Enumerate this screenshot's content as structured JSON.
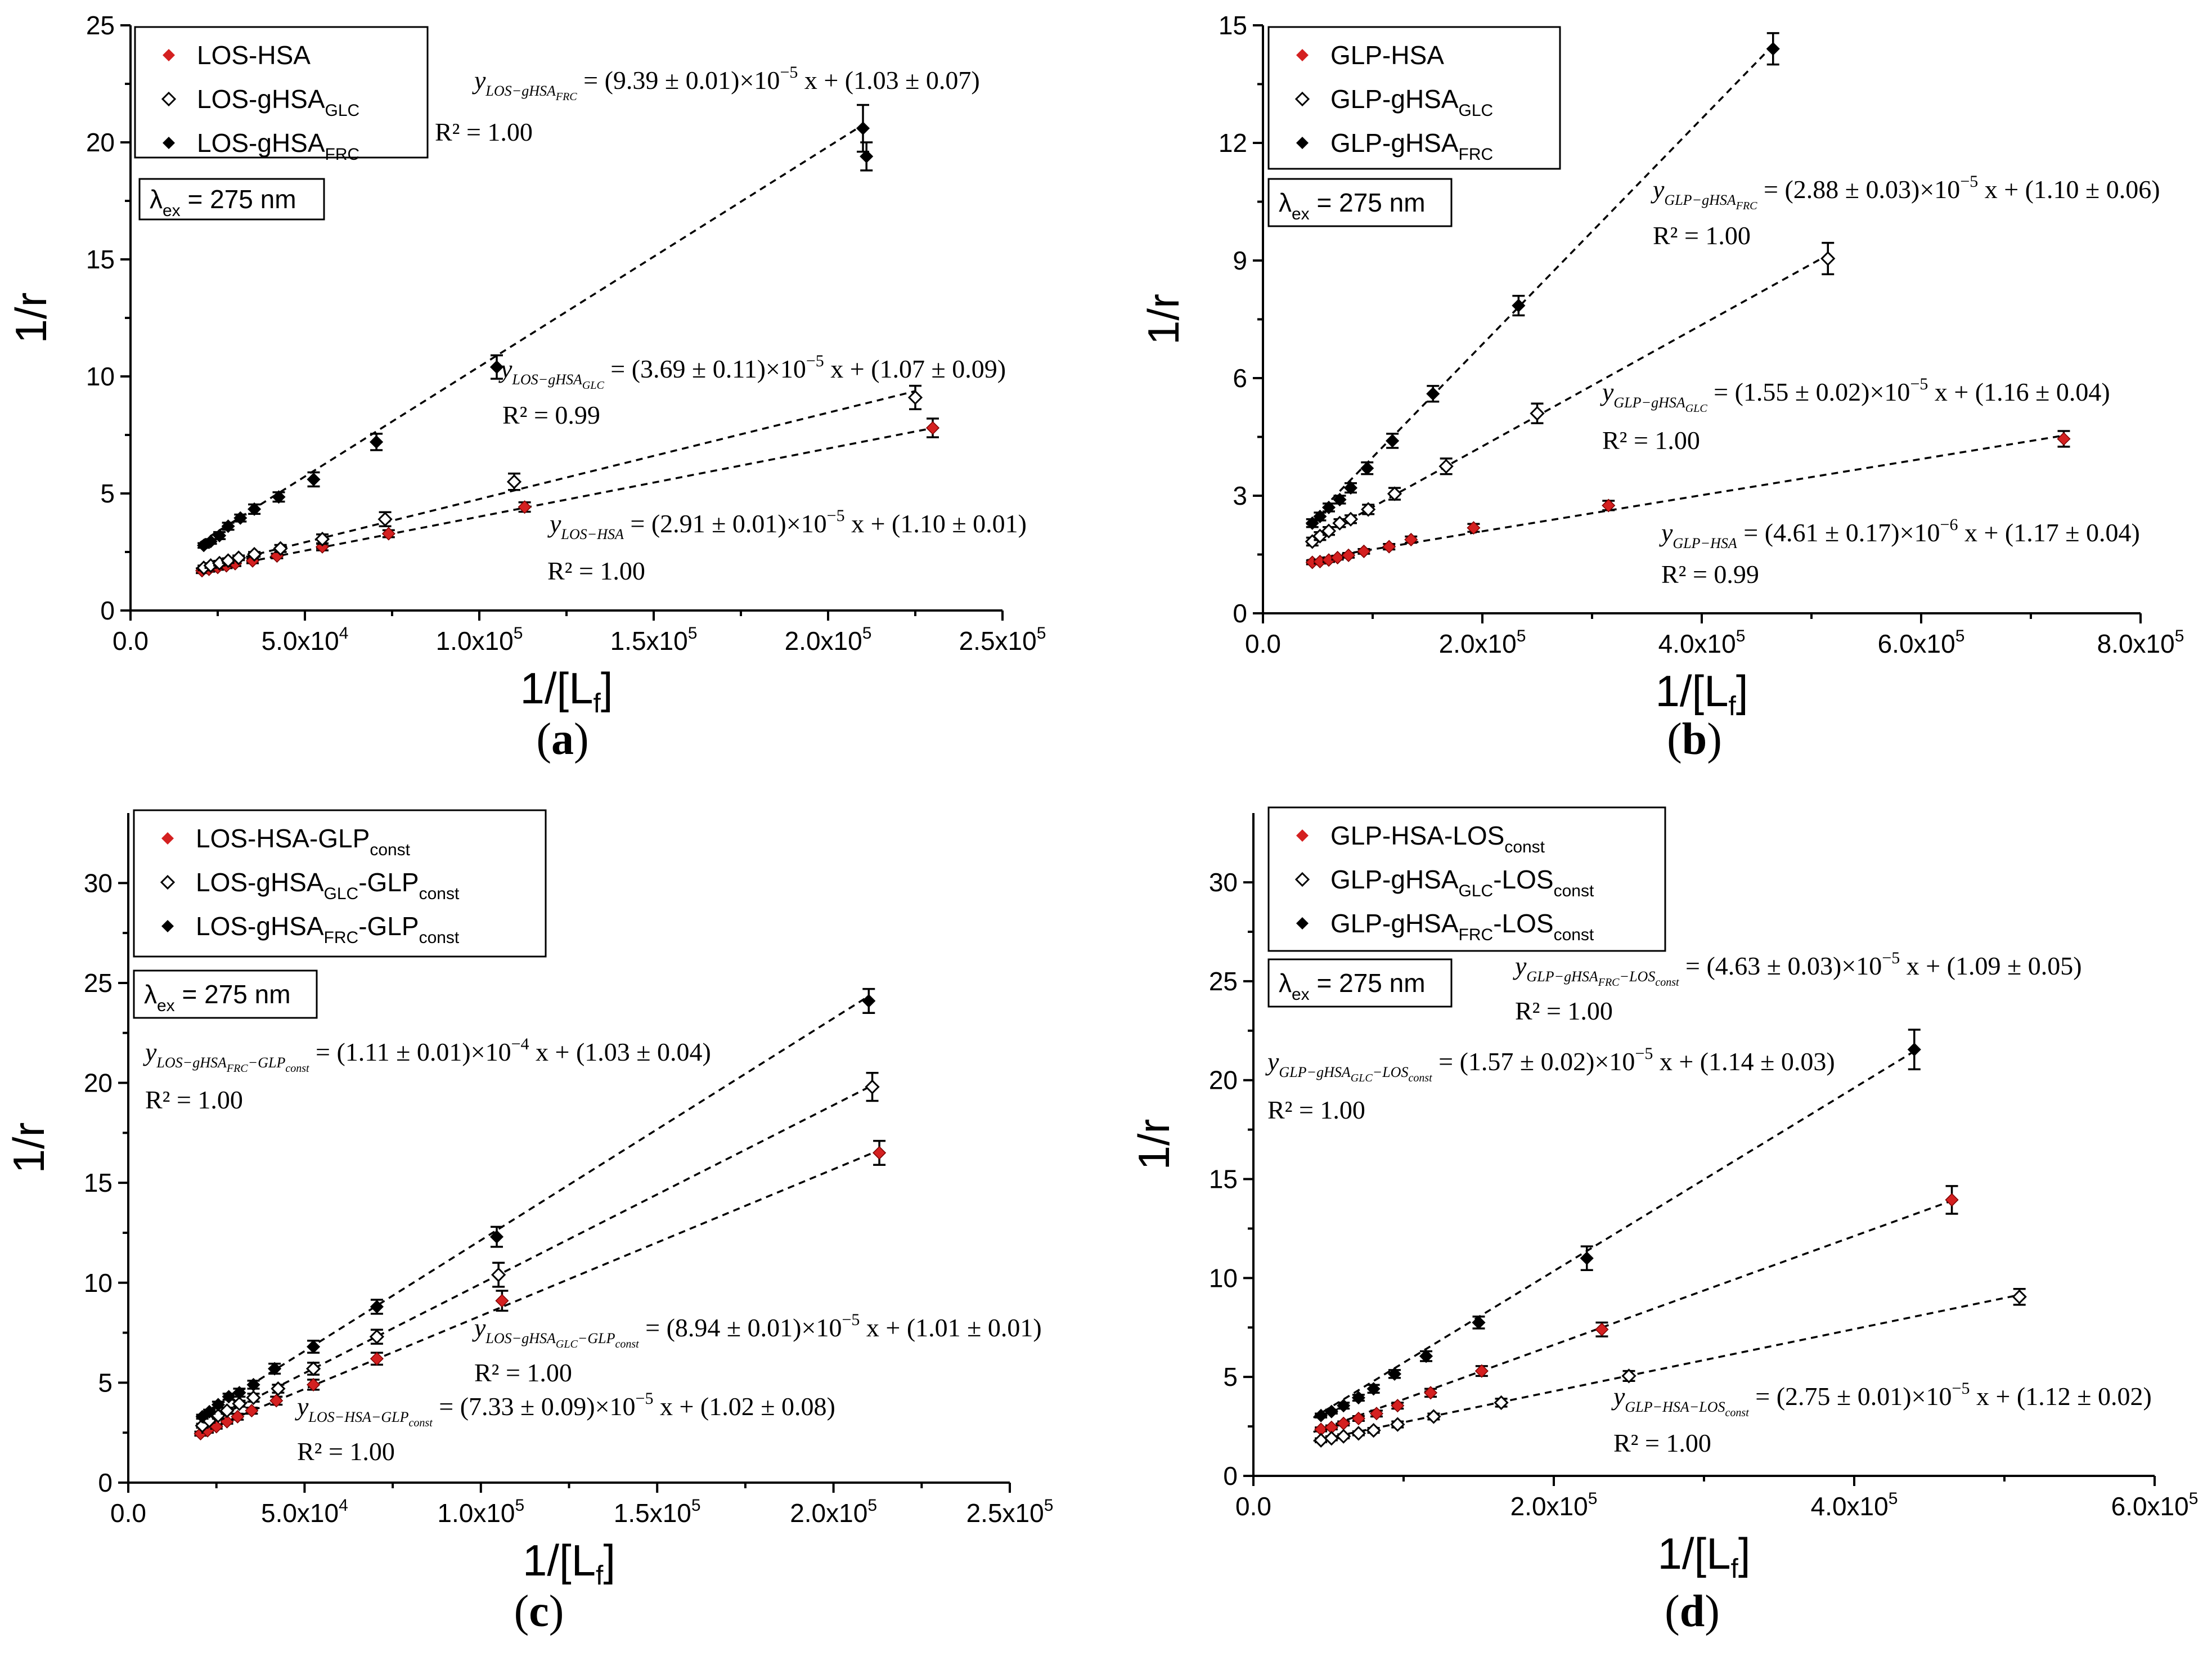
{
  "figure": {
    "ex_label": "λex = 275 nm",
    "ex_main": "λ",
    "ex_sub": "ex",
    "ex_rest": " = 275 nm"
  },
  "chart_data": [
    {
      "id": "a",
      "type": "scatter",
      "panel_label": "(a)",
      "xlabel": "1/[Lf]",
      "ylabel": "1/r",
      "xlim": [
        0,
        250000
      ],
      "ylim": [
        0,
        25
      ],
      "xticks": [
        {
          "v": 0,
          "m": "0.0",
          "e": ""
        },
        {
          "v": 50000,
          "m": "5.0x10",
          "e": "4"
        },
        {
          "v": 100000,
          "m": "1.0x10",
          "e": "5"
        },
        {
          "v": 150000,
          "m": "1.5x10",
          "e": "5"
        },
        {
          "v": 200000,
          "m": "2.0x10",
          "e": "5"
        },
        {
          "v": 250000,
          "m": "2.5x10",
          "e": "5"
        }
      ],
      "yticks": [
        0,
        5,
        10,
        15,
        20,
        25
      ],
      "series": [
        {
          "name": "LOS-HSA",
          "legend_main": "LOS-HSA",
          "legend_sub": "",
          "legend_tail": "",
          "marker": "filled",
          "color": "#d42020",
          "slope": 2.91e-05,
          "intercept": 1.1,
          "fit_x": [
            20000,
            230000
          ],
          "x": [
            20500,
            22500,
            25000,
            27500,
            30000,
            35000,
            42000,
            55000,
            74000,
            113000,
            230000
          ],
          "y": [
            1.7,
            1.76,
            1.84,
            1.91,
            2.0,
            2.12,
            2.33,
            2.72,
            3.28,
            4.42,
            7.8
          ],
          "err": [
            0.1,
            0.1,
            0.1,
            0.1,
            0.1,
            0.1,
            0.1,
            0.15,
            0.15,
            0.2,
            0.4
          ]
        },
        {
          "name": "LOS-gHSAGLC",
          "legend_main": "LOS-gHSA",
          "legend_sub": "GLC",
          "legend_tail": "",
          "marker": "open",
          "color": "#000000",
          "slope": 3.69e-05,
          "intercept": 1.07,
          "fit_x": [
            20000,
            225000
          ],
          "x": [
            21000,
            23000,
            25500,
            28000,
            31000,
            35500,
            43000,
            55000,
            73000,
            110000,
            225000
          ],
          "y": [
            1.82,
            1.92,
            2.02,
            2.13,
            2.25,
            2.4,
            2.65,
            3.05,
            3.9,
            5.5,
            9.1
          ],
          "err": [
            0.1,
            0.1,
            0.1,
            0.1,
            0.1,
            0.1,
            0.15,
            0.2,
            0.3,
            0.35,
            0.5
          ]
        },
        {
          "name": "LOS-gHSAFRC",
          "legend_main": "LOS-gHSA",
          "legend_sub": "FRC",
          "legend_tail": "",
          "marker": "filled",
          "color": "#000000",
          "slope": 9.39e-05,
          "intercept": 1.03,
          "fit_x": [
            20000,
            210000
          ],
          "x": [
            21000,
            23000,
            25500,
            28000,
            31500,
            35500,
            42500,
            52500,
            70500,
            105000,
            210000,
            211000
          ],
          "y": [
            2.78,
            2.95,
            3.2,
            3.6,
            3.95,
            4.33,
            4.85,
            5.6,
            7.2,
            10.4,
            20.6,
            19.4
          ],
          "err": [
            0.1,
            0.1,
            0.15,
            0.15,
            0.15,
            0.2,
            0.2,
            0.3,
            0.35,
            0.5,
            1.0,
            0.6
          ]
        }
      ],
      "equations": [
        {
          "pre": "y",
          "sub": "LOS−gHSA",
          "subsub": "FRC",
          "rhs": " = (9.39 ± 0.01)×10",
          "exp": "−5",
          "tail": " x + (1.03 ± 0.07)",
          "r2": "R² = 1.00"
        },
        {
          "pre": "y",
          "sub": "LOS−gHSA",
          "subsub": "GLC",
          "rhs": " = (3.69 ± 0.11)×10",
          "exp": "−5",
          "tail": " x + (1.07 ± 0.09)",
          "r2": "R² = 0.99"
        },
        {
          "pre": "y",
          "sub": "LOS−HSA",
          "subsub": "",
          "rhs": " = (2.91 ± 0.01)×10",
          "exp": "−5",
          "tail": " x + (1.10 ± 0.01)",
          "r2": "R² = 1.00"
        }
      ]
    },
    {
      "id": "b",
      "type": "scatter",
      "panel_label": "(b)",
      "xlabel": "1/[Lf]",
      "ylabel": "1/r",
      "xlim": [
        0,
        800000
      ],
      "ylim": [
        0,
        15
      ],
      "xticks": [
        {
          "v": 0,
          "m": "0.0",
          "e": ""
        },
        {
          "v": 200000,
          "m": "2.0x10",
          "e": "5"
        },
        {
          "v": 400000,
          "m": "4.0x10",
          "e": "5"
        },
        {
          "v": 600000,
          "m": "6.0x10",
          "e": "5"
        },
        {
          "v": 800000,
          "m": "8.0x10",
          "e": "5"
        }
      ],
      "yticks": [
        0,
        3,
        6,
        9,
        12,
        15
      ],
      "series": [
        {
          "name": "GLP-HSA",
          "legend_main": "GLP-HSA",
          "legend_sub": "",
          "legend_tail": "",
          "marker": "filled",
          "color": "#d42020",
          "slope": 4.61e-06,
          "intercept": 1.17,
          "fit_x": [
            40000,
            730000
          ],
          "x": [
            45000,
            52000,
            60000,
            68000,
            78000,
            92000,
            115000,
            135000,
            192000,
            315000,
            730000
          ],
          "y": [
            1.3,
            1.32,
            1.36,
            1.42,
            1.48,
            1.58,
            1.7,
            1.88,
            2.18,
            2.75,
            4.45
          ],
          "err": [
            0.05,
            0.05,
            0.05,
            0.05,
            0.06,
            0.06,
            0.07,
            0.08,
            0.1,
            0.12,
            0.2
          ]
        },
        {
          "name": "GLP-gHSAGLC",
          "legend_main": "GLP-gHSA",
          "legend_sub": "GLC",
          "legend_tail": "",
          "marker": "open",
          "color": "#000000",
          "slope": 1.55e-05,
          "intercept": 1.16,
          "fit_x": [
            40000,
            515000
          ],
          "x": [
            45000,
            52000,
            60000,
            70000,
            80000,
            96000,
            120000,
            167000,
            250000,
            515000
          ],
          "y": [
            1.83,
            1.97,
            2.1,
            2.3,
            2.4,
            2.65,
            3.05,
            3.75,
            5.1,
            9.05
          ],
          "err": [
            0.1,
            0.1,
            0.1,
            0.1,
            0.1,
            0.12,
            0.15,
            0.2,
            0.25,
            0.4
          ]
        },
        {
          "name": "GLP-gHSAFRC",
          "legend_main": "GLP-gHSA",
          "legend_sub": "FRC",
          "legend_tail": "",
          "marker": "filled",
          "color": "#000000",
          "slope": 2.88e-05,
          "intercept": 1.1,
          "fit_x": [
            40000,
            465000
          ],
          "x": [
            45000,
            52000,
            60000,
            70000,
            80000,
            95000,
            118000,
            155000,
            233000,
            465000
          ],
          "y": [
            2.3,
            2.47,
            2.7,
            2.9,
            3.2,
            3.7,
            4.4,
            5.6,
            7.85,
            14.4
          ],
          "err": [
            0.1,
            0.1,
            0.1,
            0.1,
            0.12,
            0.15,
            0.18,
            0.2,
            0.25,
            0.4
          ]
        }
      ],
      "equations": [
        {
          "pre": "y",
          "sub": "GLP−gHSA",
          "subsub": "FRC",
          "rhs": " = (2.88 ± 0.03)×10",
          "exp": "−5",
          "tail": " x + (1.10 ± 0.06)",
          "r2": "R² = 1.00"
        },
        {
          "pre": "y",
          "sub": "GLP−gHSA",
          "subsub": "GLC",
          "rhs": " = (1.55 ± 0.02)×10",
          "exp": "−5",
          "tail": " x + (1.16 ± 0.04)",
          "r2": "R² = 1.00"
        },
        {
          "pre": "y",
          "sub": "GLP−HSA",
          "subsub": "",
          "rhs": " = (4.61 ± 0.17)×10",
          "exp": "−6",
          "tail": " x + (1.17 ± 0.04)",
          "r2": "R² = 0.99"
        }
      ]
    },
    {
      "id": "c",
      "type": "scatter",
      "panel_label": "(c)",
      "xlabel": "1/[Lf]",
      "ylabel": "1/r",
      "xlim": [
        0,
        250000
      ],
      "ylim": [
        0,
        33.5
      ],
      "xticks": [
        {
          "v": 0,
          "m": "0.0",
          "e": ""
        },
        {
          "v": 50000,
          "m": "5.0x10",
          "e": "4"
        },
        {
          "v": 100000,
          "m": "1.0x10",
          "e": "5"
        },
        {
          "v": 150000,
          "m": "1.5x10",
          "e": "5"
        },
        {
          "v": 200000,
          "m": "2.0x10",
          "e": "5"
        },
        {
          "v": 250000,
          "m": "2.5x10",
          "e": "5"
        }
      ],
      "yticks": [
        0,
        5,
        10,
        15,
        20,
        25,
        30
      ],
      "series": [
        {
          "name": "LOS-HSA-GLPconst",
          "legend_main": "LOS-HSA-GLP",
          "legend_sub": "const",
          "legend_tail": "",
          "marker": "filled",
          "color": "#d42020",
          "slope": 7.33e-05,
          "intercept": 1.02,
          "fit_x": [
            20000,
            213000
          ],
          "x": [
            20500,
            22500,
            25000,
            28000,
            31000,
            35000,
            42000,
            52500,
            70500,
            106000,
            213000
          ],
          "y": [
            2.45,
            2.6,
            2.8,
            3.05,
            3.3,
            3.6,
            4.1,
            4.9,
            6.2,
            9.1,
            16.5
          ],
          "err": [
            0.1,
            0.1,
            0.1,
            0.1,
            0.15,
            0.15,
            0.2,
            0.25,
            0.3,
            0.5,
            0.6
          ]
        },
        {
          "name": "LOS-gHSAGLC-GLPconst",
          "legend_main": "LOS-gHSA",
          "legend_sub": "GLC",
          "legend_tail": "-GLP",
          "legend_sub2": "const",
          "marker": "open",
          "color": "#000000",
          "slope": 8.94e-05,
          "intercept": 1.01,
          "fit_x": [
            20000,
            211000
          ],
          "x": [
            21000,
            23000,
            25500,
            28000,
            31500,
            35500,
            42500,
            52500,
            70500,
            105000,
            211000
          ],
          "y": [
            2.85,
            3.1,
            3.35,
            3.6,
            3.95,
            4.25,
            4.7,
            5.7,
            7.3,
            10.4,
            19.8
          ],
          "err": [
            0.1,
            0.1,
            0.15,
            0.15,
            0.15,
            0.2,
            0.2,
            0.3,
            0.35,
            0.6,
            0.7
          ]
        },
        {
          "name": "LOS-gHSAFRC-GLPconst",
          "legend_main": "LOS-gHSA",
          "legend_sub": "FRC",
          "legend_tail": "-GLP",
          "legend_sub2": "const",
          "marker": "filled",
          "color": "#000000",
          "slope": 0.000111,
          "intercept": 1.03,
          "fit_x": [
            20000,
            210000
          ],
          "x": [
            21000,
            23000,
            25500,
            28500,
            31500,
            35500,
            41500,
            52500,
            70500,
            104500,
            210000
          ],
          "y": [
            3.3,
            3.55,
            3.9,
            4.3,
            4.5,
            4.9,
            5.7,
            6.8,
            8.8,
            12.3,
            24.1
          ],
          "err": [
            0.1,
            0.1,
            0.15,
            0.15,
            0.2,
            0.2,
            0.25,
            0.3,
            0.35,
            0.5,
            0.6
          ]
        }
      ],
      "equations": [
        {
          "pre": "y",
          "sub": "LOS−gHSA",
          "subsub": "FRC",
          "sub2": "−GLP",
          "subsub2": "const",
          "rhs": " = (1.11 ± 0.01)×10",
          "exp": "−4",
          "tail": " x + (1.03 ± 0.04)",
          "r2": "R² = 1.00"
        },
        {
          "pre": "y",
          "sub": "LOS−gHSA",
          "subsub": "GLC",
          "sub2": "−GLP",
          "subsub2": "const",
          "rhs": " = (8.94 ± 0.01)×10",
          "exp": "−5",
          "tail": " x + (1.01 ± 0.01)",
          "r2": "R² = 1.00"
        },
        {
          "pre": "y",
          "sub": "LOS−HSA−GLP",
          "subsub": "const",
          "rhs": " = (7.33 ± 0.09)×10",
          "exp": "−5",
          "tail": " x + (1.02 ± 0.08)",
          "r2": "R² = 1.00"
        }
      ]
    },
    {
      "id": "d",
      "type": "scatter",
      "panel_label": "(d)",
      "xlabel": "1/[Lf]",
      "ylabel": "1/r",
      "xlim": [
        0,
        600000
      ],
      "ylim": [
        0,
        33.5
      ],
      "xticks": [
        {
          "v": 0,
          "m": "0.0",
          "e": ""
        },
        {
          "v": 200000,
          "m": "2.0x10",
          "e": "5"
        },
        {
          "v": 400000,
          "m": "4.0x10",
          "e": "5"
        },
        {
          "v": 600000,
          "m": "6.0x10",
          "e": "5"
        }
      ],
      "yticks": [
        0,
        5,
        10,
        15,
        20,
        25,
        30
      ],
      "series": [
        {
          "name": "GLP-HSA-LOSconst",
          "legend_main": "GLP-HSA-LOS",
          "legend_sub": "const",
          "legend_tail": "",
          "marker": "filled",
          "color": "#d42020",
          "slope": 2.75e-05,
          "intercept": 1.12,
          "fit_x": [
            40000,
            465000
          ],
          "x": [
            45000,
            52000,
            60000,
            70000,
            82000,
            96000,
            118000,
            152000,
            232000,
            465000
          ],
          "y": [
            2.35,
            2.45,
            2.65,
            2.9,
            3.15,
            3.55,
            4.2,
            5.3,
            7.4,
            13.95
          ],
          "err": [
            0.1,
            0.1,
            0.1,
            0.12,
            0.15,
            0.15,
            0.2,
            0.25,
            0.35,
            0.7
          ]
        },
        {
          "name": "GLP-gHSAGLC-LOSconst",
          "legend_main": "GLP-gHSA",
          "legend_sub": "GLC",
          "legend_tail": "-LOS",
          "legend_sub2": "const",
          "marker": "open",
          "color": "#000000",
          "slope": 1.57e-05,
          "intercept": 1.14,
          "fit_x": [
            40000,
            510000
          ],
          "x": [
            45000,
            52000,
            60000,
            70000,
            80000,
            96000,
            120000,
            165000,
            250000,
            510000
          ],
          "y": [
            1.8,
            1.9,
            2.0,
            2.15,
            2.3,
            2.6,
            3.0,
            3.7,
            5.05,
            9.05
          ],
          "err": [
            0.1,
            0.1,
            0.1,
            0.1,
            0.12,
            0.15,
            0.15,
            0.2,
            0.25,
            0.4
          ]
        },
        {
          "name": "GLP-gHSAFRC-LOSconst",
          "legend_main": "GLP-gHSA",
          "legend_sub": "FRC",
          "legend_tail": "-LOS",
          "legend_sub2": "const",
          "marker": "filled",
          "color": "#000000",
          "slope": 4.63e-05,
          "intercept": 1.09,
          "fit_x": [
            40000,
            440000
          ],
          "x": [
            45000,
            52000,
            60000,
            70000,
            80000,
            94000,
            115000,
            150000,
            222000,
            440000
          ],
          "y": [
            3.05,
            3.25,
            3.55,
            3.95,
            4.4,
            5.15,
            6.05,
            7.75,
            11.0,
            21.55
          ],
          "err": [
            0.1,
            0.1,
            0.15,
            0.15,
            0.2,
            0.2,
            0.25,
            0.3,
            0.6,
            1.0
          ]
        }
      ],
      "equations": [
        {
          "pre": "y",
          "sub": "GLP−gHSA",
          "subsub": "FRC",
          "sub2": "−LOS",
          "subsub2": "const",
          "rhs": " = (4.63 ± 0.03)×10",
          "exp": "−5",
          "tail": " x + (1.09 ± 0.05)",
          "r2": "R² = 1.00"
        },
        {
          "pre": "y",
          "sub": "GLP−gHSA",
          "subsub": "GLC",
          "sub2": "−LOS",
          "subsub2": "const",
          "rhs": " = (1.57 ± 0.02)×10",
          "exp": "−5",
          "tail": " x + (1.14 ± 0.03)",
          "r2": "R² = 1.00"
        },
        {
          "pre": "y",
          "sub": "GLP−HSA−LOS",
          "subsub": "const",
          "rhs": " = (2.75 ± 0.01)×10",
          "exp": "−5",
          "tail": " x + (1.12 ± 0.02)",
          "r2": "R² = 1.00"
        }
      ]
    }
  ]
}
